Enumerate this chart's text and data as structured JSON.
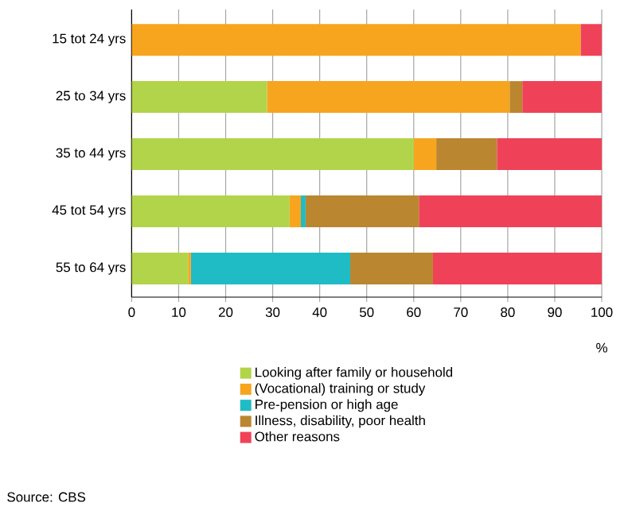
{
  "chart_data": {
    "type": "bar",
    "orientation": "horizontal",
    "stacked": true,
    "xlabel": "%",
    "categories": [
      "15 tot 24 yrs",
      "25 to 34 yrs",
      "35 to 44 yrs",
      "45 tot 54 yrs",
      "55 to 64 yrs"
    ],
    "series": [
      {
        "name": "Looking after family or household",
        "color": "#b2d44a",
        "values": [
          0,
          28.8,
          60.0,
          33.6,
          12.0
        ]
      },
      {
        "name": "(Vocational) training or study",
        "color": "#f7a51e",
        "values": [
          95.5,
          51.6,
          4.8,
          2.4,
          0.6
        ]
      },
      {
        "name": "Pre-pension or high age",
        "color": "#20bcc6",
        "values": [
          0,
          0,
          0,
          1.0,
          33.9
        ]
      },
      {
        "name": "Illness, disability, poor health",
        "color": "#bb8630",
        "values": [
          0,
          2.7,
          12.9,
          24.1,
          17.6
        ]
      },
      {
        "name": "Other reasons",
        "color": "#ef4259",
        "values": [
          4.5,
          16.9,
          22.3,
          38.9,
          35.9
        ]
      }
    ],
    "xlim": [
      0,
      100
    ],
    "xticks": [
      0,
      10,
      20,
      30,
      40,
      50,
      60,
      70,
      80,
      90,
      100
    ],
    "grid": "x",
    "legend": "bottom",
    "annotations": [
      "Source: CBS"
    ]
  }
}
